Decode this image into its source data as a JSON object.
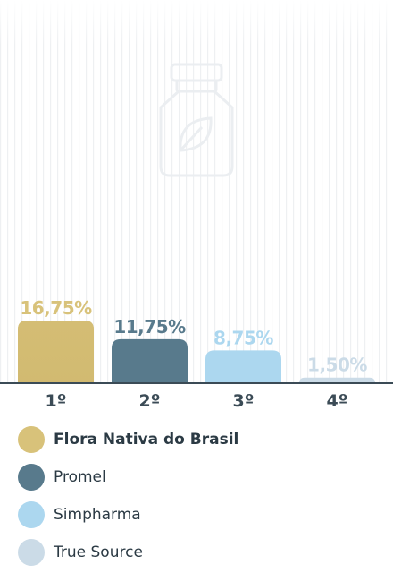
{
  "chart_data": {
    "type": "bar",
    "categories": [
      "1º",
      "2º",
      "3º",
      "4º"
    ],
    "values": [
      16.75,
      11.75,
      8.75,
      1.5
    ],
    "value_labels": [
      "16,75%",
      "11,75%",
      "8,75%",
      "1,50%"
    ],
    "series": [
      {
        "name": "Flora Nativa do Brasil",
        "value": 16.75
      },
      {
        "name": "Promel",
        "value": 11.75
      },
      {
        "name": "Simpharma",
        "value": 8.75
      },
      {
        "name": "True Source",
        "value": 1.5
      }
    ],
    "colors": [
      "#d8c27a",
      "#587a8c",
      "#acd7ef",
      "#cbdbe7"
    ],
    "label_colors": [
      "#d8c27a",
      "#587a8c",
      "#acd7ef",
      "#cbdbe7"
    ],
    "axis_color": "#3b4b56",
    "ylim": [
      0,
      23
    ],
    "legend_position": "bottom",
    "legend_bold_index": 0,
    "grid": false,
    "background_icon": "supplement-bottle-leaf-icon"
  }
}
